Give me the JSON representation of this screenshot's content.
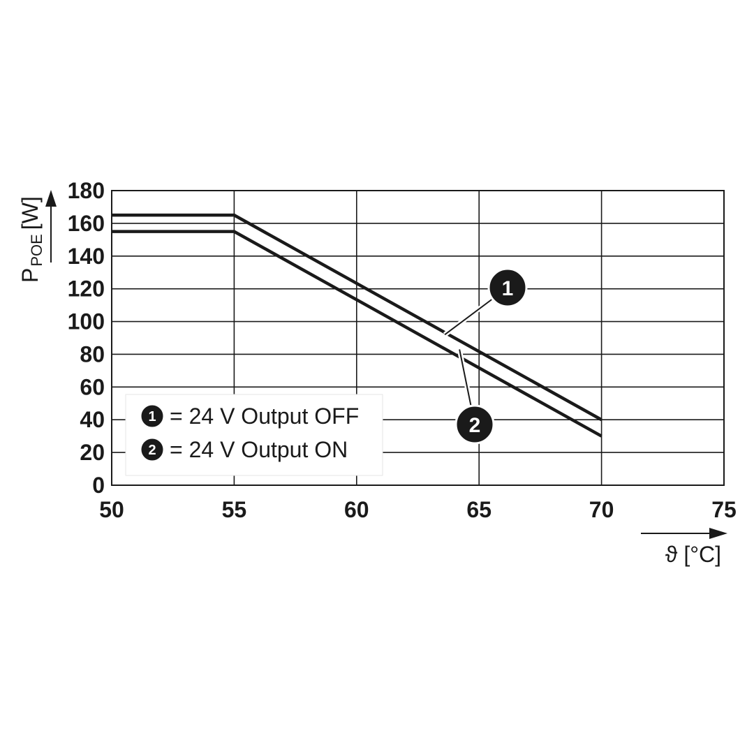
{
  "chart_data": {
    "type": "line",
    "y_axis_label": {
      "main": "P",
      "subscript": "POE",
      "unit": "[W]"
    },
    "x_axis_label": "ϑ [°C]",
    "x_ticks": [
      "50",
      "55",
      "60",
      "65",
      "70",
      "75"
    ],
    "y_ticks": [
      "0",
      "20",
      "40",
      "60",
      "80",
      "100",
      "120",
      "140",
      "160",
      "180"
    ],
    "xlim": [
      50,
      75
    ],
    "ylim": [
      0,
      180
    ],
    "grid": true,
    "legend_position": "bottom-left",
    "series": [
      {
        "id": "1",
        "name": "= 24 V Output OFF",
        "color": "#1a1a1a",
        "points": [
          [
            50,
            165
          ],
          [
            55,
            165
          ],
          [
            70,
            40
          ]
        ]
      },
      {
        "id": "2",
        "name": "= 24 V Output ON",
        "color": "#1a1a1a",
        "points": [
          [
            50,
            155
          ],
          [
            55,
            155
          ],
          [
            70,
            30
          ]
        ]
      }
    ],
    "callouts": [
      {
        "label": "1",
        "series": "1"
      },
      {
        "label": "2",
        "series": "2"
      }
    ]
  }
}
